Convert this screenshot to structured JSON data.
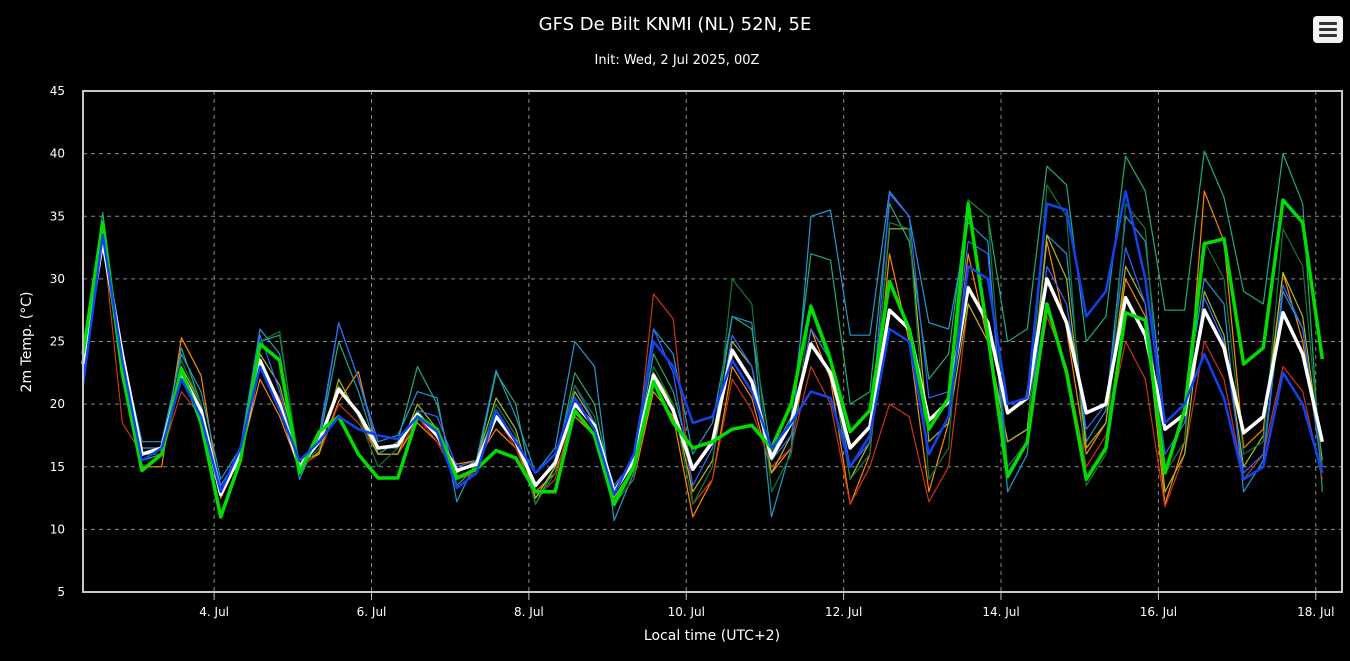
{
  "chart_data": {
    "type": "line",
    "title": "GFS De Bilt KNMI (NL) 52N, 5E",
    "subtitle": "Init: Wed, 2 Jul 2025, 00Z",
    "xlabel": "Local time (UTC+2)",
    "ylabel": "2m Temp. (°C)",
    "ylim": [
      5,
      45
    ],
    "yticks": [
      5,
      10,
      15,
      20,
      25,
      30,
      35,
      40,
      45
    ],
    "xlim": [
      "2025-07-02T08:00",
      "2025-07-18T08:00"
    ],
    "xticks": [
      "4. Jul",
      "6. Jul",
      "8. Jul",
      "10. Jul",
      "12. Jul",
      "14. Jul",
      "16. Jul",
      "18. Jul"
    ],
    "grid": true,
    "step_hours": 6,
    "start": "2025-07-02T08:00",
    "series": [
      {
        "color": "#ffffff",
        "values": [
          23.2,
          33.0,
          24.0,
          16.0,
          16.5,
          22.5,
          19.5,
          12.8,
          16.0,
          23.5,
          20.0,
          15.0,
          17.0,
          21.2,
          19.3,
          16.5,
          16.7,
          19.2,
          17.5,
          14.7,
          15.2,
          19.0,
          17.0,
          13.5,
          15.3,
          20.0,
          18.3,
          13.0,
          15.5,
          22.3,
          19.5,
          14.8,
          17.0,
          24.3,
          21.8,
          15.7,
          18.5,
          24.8,
          22.5,
          16.5,
          18.2,
          27.5,
          26.0,
          18.7,
          20.2,
          29.3,
          26.5,
          19.3,
          20.5,
          30.0,
          26.5,
          19.3,
          20.0,
          28.5,
          25.5,
          18.0,
          19.2,
          27.5,
          24.5,
          17.7,
          19.0,
          27.3,
          24.0,
          17.0
        ]
      },
      {
        "color": "#00dd00",
        "values": [
          24.0,
          34.5,
          22.5,
          14.7,
          16.0,
          22.8,
          18.5,
          11.0,
          15.5,
          24.8,
          23.5,
          14.5,
          17.8,
          19.0,
          16.0,
          14.1,
          14.1,
          19.0,
          18.0,
          14.1,
          14.8,
          16.3,
          15.7,
          13.0,
          13.0,
          19.5,
          17.5,
          12.0,
          15.0,
          21.8,
          18.5,
          16.5,
          17.0,
          18.0,
          18.3,
          16.5,
          20.0,
          27.8,
          23.5,
          17.8,
          19.5,
          29.8,
          26.0,
          18.0,
          20.5,
          36.0,
          25.5,
          14.2,
          17.0,
          28.0,
          22.5,
          14.0,
          16.5,
          27.3,
          26.7,
          14.5,
          19.5,
          32.8,
          33.2,
          23.2,
          24.5,
          36.3,
          34.5,
          23.6
        ]
      },
      {
        "color": "#1144ee",
        "values": [
          21.5,
          33.5,
          23.5,
          15.5,
          16.5,
          22.0,
          19.0,
          13.0,
          16.5,
          23.0,
          19.5,
          15.5,
          17.0,
          19.0,
          18.0,
          17.5,
          17.2,
          19.0,
          17.8,
          13.3,
          14.5,
          19.5,
          17.0,
          14.5,
          16.0,
          20.5,
          18.0,
          12.8,
          16.0,
          25.0,
          23.0,
          18.5,
          19.0,
          23.5,
          21.0,
          16.5,
          18.5,
          21.0,
          20.5,
          15.0,
          17.5,
          26.0,
          25.0,
          16.0,
          19.0,
          31.0,
          30.0,
          20.0,
          20.5,
          36.0,
          35.5,
          27.0,
          29.0,
          37.0,
          30.0,
          18.5,
          20.0,
          24.0,
          20.5,
          14.0,
          15.0,
          22.5,
          20.0,
          14.5
        ]
      },
      {
        "color": "#ff8800",
        "values": [
          22.8,
          33.2,
          23.8,
          15.0,
          15.0,
          25.3,
          22.3,
          12.5,
          15.8,
          22.0,
          19.0,
          14.8,
          16.2,
          20.2,
          22.6,
          16.0,
          16.0,
          18.5,
          17.0,
          15.2,
          15.5,
          18.0,
          16.5,
          13.0,
          14.5,
          19.0,
          17.5,
          12.0,
          14.0,
          21.0,
          19.0,
          11.0,
          14.0,
          23.0,
          20.5,
          14.5,
          16.5,
          26.0,
          22.0,
          12.0,
          16.0,
          32.0,
          25.0,
          13.0,
          18.5,
          32.0,
          25.0,
          17.0,
          18.0,
          33.0,
          26.0,
          16.0,
          18.5,
          30.0,
          27.0,
          12.0,
          17.0,
          37.0,
          33.0,
          16.5,
          18.0,
          30.5,
          25.0,
          15.0
        ]
      },
      {
        "color": "#22aa77",
        "values": [
          23.0,
          35.3,
          23.0,
          15.5,
          16.0,
          24.5,
          20.0,
          13.5,
          16.0,
          25.0,
          25.5,
          15.0,
          17.0,
          25.0,
          21.0,
          16.0,
          17.0,
          23.0,
          20.0,
          13.5,
          15.0,
          22.5,
          20.0,
          12.0,
          15.0,
          22.5,
          20.0,
          12.5,
          15.0,
          24.0,
          21.0,
          15.0,
          17.0,
          27.0,
          26.0,
          16.0,
          19.0,
          32.0,
          31.5,
          20.0,
          21.0,
          36.0,
          33.0,
          22.0,
          24.0,
          36.3,
          35.0,
          25.0,
          26.0,
          39.0,
          37.5,
          25.0,
          27.0,
          39.8,
          37.0,
          27.5,
          27.5,
          40.2,
          36.5,
          29.0,
          28.0,
          40.0,
          36.0,
          13.0
        ]
      },
      {
        "color": "#2299cc",
        "values": [
          22.0,
          34.0,
          24.0,
          17.0,
          17.0,
          24.0,
          21.0,
          14.0,
          16.5,
          26.0,
          24.0,
          14.0,
          17.5,
          26.5,
          22.0,
          17.0,
          17.5,
          21.0,
          20.5,
          12.2,
          15.5,
          22.7,
          19.0,
          14.5,
          16.5,
          25.0,
          23.0,
          10.7,
          14.5,
          26.0,
          24.0,
          16.0,
          18.5,
          27.0,
          26.5,
          11.0,
          16.5,
          35.0,
          35.5,
          25.5,
          25.5,
          37.0,
          35.0,
          26.5,
          26.0,
          34.5,
          33.0,
          13.0,
          16.0,
          33.5,
          32.0,
          17.0,
          19.5,
          35.0,
          33.0,
          18.5,
          20.0,
          30.0,
          28.0,
          13.0,
          15.5,
          29.0,
          26.0,
          14.5
        ]
      },
      {
        "color": "#cc3311",
        "values": [
          23.0,
          33.5,
          18.5,
          16.0,
          16.0,
          21.0,
          19.0,
          13.0,
          15.5,
          23.0,
          20.5,
          15.0,
          16.0,
          20.0,
          18.5,
          16.0,
          16.0,
          19.0,
          17.0,
          14.0,
          14.5,
          19.0,
          16.5,
          12.5,
          14.0,
          20.0,
          18.0,
          12.0,
          14.0,
          28.8,
          26.8,
          12.0,
          14.0,
          22.0,
          19.5,
          15.0,
          16.5,
          23.0,
          20.0,
          12.0,
          15.0,
          20.0,
          19.0,
          12.2,
          15.0,
          28.0,
          25.0,
          15.0,
          17.0,
          27.0,
          23.0,
          15.0,
          17.5,
          25.0,
          22.0,
          11.8,
          16.0,
          25.0,
          22.0,
          14.0,
          16.0,
          23.0,
          21.0,
          14.0
        ]
      },
      {
        "color": "#aabb22",
        "values": [
          23.5,
          34.0,
          22.0,
          16.5,
          16.5,
          23.0,
          20.0,
          12.8,
          15.7,
          24.0,
          21.5,
          15.5,
          16.0,
          22.0,
          19.0,
          16.0,
          16.0,
          20.0,
          18.0,
          14.5,
          15.5,
          20.5,
          18.0,
          12.5,
          15.0,
          21.0,
          18.5,
          12.5,
          15.0,
          22.5,
          20.0,
          13.0,
          15.5,
          25.0,
          23.0,
          14.5,
          17.5,
          26.0,
          23.5,
          14.0,
          17.0,
          34.0,
          34.0,
          17.0,
          18.5,
          28.0,
          25.0,
          17.0,
          18.0,
          33.5,
          30.0,
          16.5,
          18.5,
          31.0,
          28.0,
          13.0,
          16.0,
          29.0,
          25.5,
          15.0,
          17.5,
          30.5,
          27.0,
          15.5
        ]
      },
      {
        "color": "#3366ff",
        "values": [
          22.5,
          33.0,
          22.5,
          16.5,
          16.5,
          22.5,
          19.5,
          13.5,
          16.0,
          25.5,
          21.0,
          15.0,
          17.0,
          26.5,
          22.0,
          16.5,
          16.5,
          19.5,
          19.0,
          15.0,
          15.5,
          19.5,
          17.0,
          13.5,
          15.5,
          21.5,
          18.5,
          13.5,
          15.5,
          26.0,
          22.5,
          13.5,
          16.5,
          25.5,
          23.0,
          15.5,
          17.5,
          26.0,
          23.5,
          15.0,
          17.0,
          36.8,
          35.0,
          20.5,
          21.0,
          33.0,
          32.0,
          14.5,
          17.0,
          31.0,
          28.0,
          18.0,
          20.0,
          32.5,
          28.0,
          16.0,
          18.5,
          28.5,
          25.0,
          14.5,
          16.0,
          29.5,
          26.0,
          15.0
        ]
      },
      {
        "color": "#117733",
        "values": [
          23.2,
          34.2,
          23.0,
          16.0,
          16.0,
          23.5,
          20.0,
          13.0,
          16.0,
          25.0,
          25.8,
          14.8,
          16.5,
          21.5,
          19.0,
          15.0,
          16.5,
          19.5,
          17.5,
          14.0,
          15.0,
          20.0,
          17.5,
          12.0,
          14.5,
          21.5,
          19.0,
          12.0,
          14.0,
          23.0,
          20.0,
          12.0,
          15.0,
          30.0,
          28.0,
          13.0,
          16.0,
          28.0,
          24.0,
          14.0,
          16.0,
          34.5,
          34.0,
          14.0,
          16.5,
          36.3,
          35.0,
          15.0,
          17.0,
          37.5,
          35.0,
          13.5,
          16.0,
          36.0,
          34.0,
          14.5,
          17.0,
          33.0,
          30.0,
          16.0,
          17.0,
          34.0,
          31.0,
          14.5
        ]
      }
    ]
  },
  "ui": {
    "menu_icon": "hamburger-menu-icon"
  }
}
